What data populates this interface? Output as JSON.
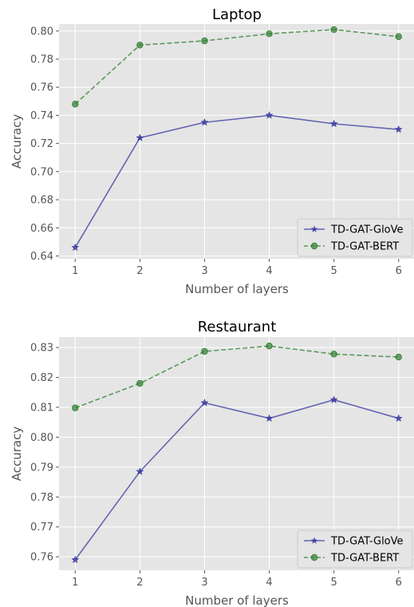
{
  "chart_data": [
    {
      "type": "line",
      "title": "Laptop",
      "xlabel": "Number of layers",
      "ylabel": "Accuracy",
      "x": [
        1,
        2,
        3,
        4,
        5,
        6
      ],
      "xticks": [
        "1",
        "2",
        "3",
        "4",
        "5",
        "6"
      ],
      "ylim": [
        0.638,
        0.805
      ],
      "yticks": [
        "0.64",
        "0.66",
        "0.68",
        "0.70",
        "0.72",
        "0.74",
        "0.76",
        "0.78",
        "0.80"
      ],
      "grid": true,
      "legend_position": "lower-right",
      "series": [
        {
          "name": "TD-GAT-GloVe",
          "values": [
            0.646,
            0.724,
            0.735,
            0.74,
            0.734,
            0.73
          ],
          "color": "#3a3aa0",
          "line_style": "solid",
          "marker": "star"
        },
        {
          "name": "TD-GAT-BERT",
          "values": [
            0.748,
            0.79,
            0.793,
            0.798,
            0.801,
            0.796
          ],
          "color": "#2e7d2e",
          "line_style": "dashed",
          "marker": "circle"
        }
      ]
    },
    {
      "type": "line",
      "title": "Restaurant",
      "xlabel": "Number of layers",
      "ylabel": "Accuracy",
      "x": [
        1,
        2,
        3,
        4,
        5,
        6
      ],
      "xticks": [
        "1",
        "2",
        "3",
        "4",
        "5",
        "6"
      ],
      "ylim": [
        0.7555,
        0.8335
      ],
      "yticks": [
        "0.76",
        "0.77",
        "0.78",
        "0.79",
        "0.80",
        "0.81",
        "0.82",
        "0.83"
      ],
      "grid": true,
      "legend_position": "lower-right",
      "series": [
        {
          "name": "TD-GAT-GloVe",
          "values": [
            0.759,
            0.7885,
            0.8115,
            0.8063,
            0.8125,
            0.8063
          ],
          "color": "#3a3aa0",
          "line_style": "solid",
          "marker": "star"
        },
        {
          "name": "TD-GAT-BERT",
          "values": [
            0.8098,
            0.818,
            0.8287,
            0.8305,
            0.8278,
            0.8268
          ],
          "color": "#2e7d2e",
          "line_style": "dashed",
          "marker": "circle"
        }
      ]
    }
  ]
}
